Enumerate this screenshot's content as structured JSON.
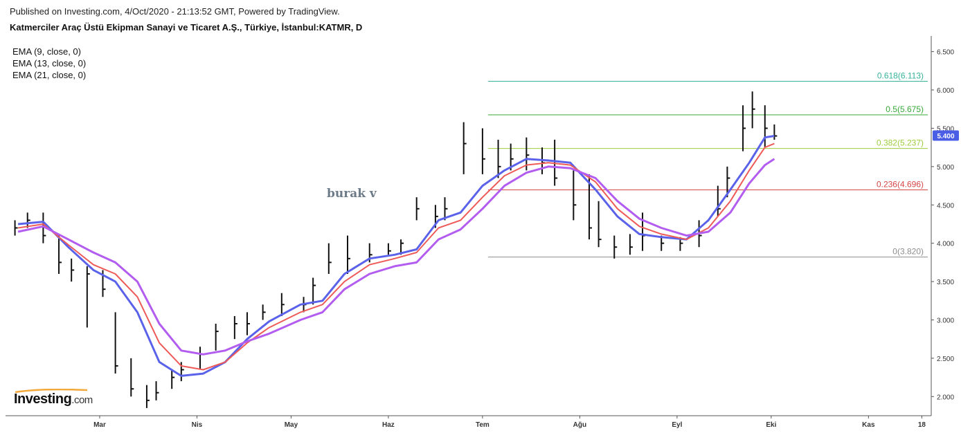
{
  "header": {
    "published": "Published on Investing.com, 4/Oct/2020 - 21:13:52 GMT, Powered by TradingView.",
    "title": "Katmerciler Araç Üstü Ekipman Sanayi ve Ticaret A.Ş., Türkiye, İstanbul:KATMR, D"
  },
  "legend": [
    "EMA (9, close, 0)",
    "EMA (13, close, 0)",
    "EMA (21, close, 0)"
  ],
  "brand": {
    "name": "Investing",
    "suffix": ".com"
  },
  "watermark": "burak v",
  "current_price": {
    "label": "5.400",
    "value": 5.4,
    "color": "#4a5ee6"
  },
  "colors": {
    "ema9": "#5b62ea",
    "ema13": "#ee5a57",
    "ema21": "#b25df0",
    "bars": "#111111"
  },
  "chart_data": {
    "type": "line",
    "ylim": [
      1.75,
      6.65
    ],
    "y_ticks": [
      "2.000",
      "2.500",
      "3.000",
      "3.500",
      "4.000",
      "4.500",
      "5.000",
      "5.500",
      "6.000",
      "6.500"
    ],
    "y_tick_values": [
      2.0,
      2.5,
      3.0,
      3.5,
      4.0,
      4.5,
      5.0,
      5.5,
      6.0,
      6.5
    ],
    "x_ticks": [
      "Mar",
      "Nis",
      "May",
      "Haz",
      "Tem",
      "Ağu",
      "Eyl",
      "Eki",
      "Kas",
      "18"
    ],
    "x_tick_dates": [
      "2020-03-01",
      "2020-04-01",
      "2020-05-01",
      "2020-06-01",
      "2020-07-01",
      "2020-08-01",
      "2020-09-01",
      "2020-10-01",
      "2020-11-01",
      "2020-11-18"
    ],
    "fibonacci": [
      {
        "label": "0.618(6.113)",
        "value": 6.113,
        "color": "#36b39a"
      },
      {
        "label": "0.5(5.675)",
        "value": 5.675,
        "color": "#35a835"
      },
      {
        "label": "0.382(5.237)",
        "value": 5.237,
        "color": "#9ccc3a"
      },
      {
        "label": "0.236(4.696)",
        "value": 4.696,
        "color": "#d64545"
      },
      {
        "label": "0(3.820)",
        "value": 3.82,
        "color": "#8c8c8c"
      }
    ],
    "series": [
      {
        "name": "EMA (9, close, 0)",
        "color": "#5b62ea",
        "x": [
          "2020-02-04",
          "2020-02-12",
          "2020-02-20",
          "2020-02-28",
          "2020-03-06",
          "2020-03-13",
          "2020-03-20",
          "2020-03-27",
          "2020-04-03",
          "2020-04-10",
          "2020-04-17",
          "2020-04-24",
          "2020-05-04",
          "2020-05-11",
          "2020-05-18",
          "2020-05-26",
          "2020-06-03",
          "2020-06-10",
          "2020-06-17",
          "2020-06-24",
          "2020-07-01",
          "2020-07-08",
          "2020-07-15",
          "2020-07-22",
          "2020-07-29",
          "2020-08-06",
          "2020-08-13",
          "2020-08-20",
          "2020-08-27",
          "2020-09-04",
          "2020-09-11",
          "2020-09-18",
          "2020-09-24",
          "2020-09-29",
          "2020-10-02"
        ],
        "values": [
          4.25,
          4.28,
          3.95,
          3.65,
          3.5,
          3.1,
          2.45,
          2.27,
          2.3,
          2.45,
          2.75,
          2.98,
          3.2,
          3.25,
          3.6,
          3.8,
          3.85,
          3.92,
          4.3,
          4.4,
          4.75,
          4.95,
          5.1,
          5.08,
          5.05,
          4.7,
          4.35,
          4.12,
          4.08,
          4.05,
          4.3,
          4.7,
          5.05,
          5.38,
          5.4
        ]
      },
      {
        "name": "EMA (13, close, 0)",
        "color": "#ee5a57",
        "x": [
          "2020-02-04",
          "2020-02-12",
          "2020-02-20",
          "2020-02-28",
          "2020-03-06",
          "2020-03-13",
          "2020-03-20",
          "2020-03-27",
          "2020-04-03",
          "2020-04-10",
          "2020-04-17",
          "2020-04-24",
          "2020-05-04",
          "2020-05-11",
          "2020-05-18",
          "2020-05-26",
          "2020-06-03",
          "2020-06-10",
          "2020-06-17",
          "2020-06-24",
          "2020-07-01",
          "2020-07-08",
          "2020-07-15",
          "2020-07-22",
          "2020-07-29",
          "2020-08-06",
          "2020-08-13",
          "2020-08-20",
          "2020-08-27",
          "2020-09-04",
          "2020-09-11",
          "2020-09-18",
          "2020-09-24",
          "2020-09-29",
          "2020-10-02"
        ],
        "values": [
          4.2,
          4.25,
          3.98,
          3.72,
          3.6,
          3.3,
          2.7,
          2.4,
          2.35,
          2.45,
          2.7,
          2.9,
          3.1,
          3.2,
          3.5,
          3.72,
          3.8,
          3.88,
          4.2,
          4.3,
          4.6,
          4.88,
          5.02,
          5.05,
          5.02,
          4.8,
          4.45,
          4.22,
          4.12,
          4.05,
          4.2,
          4.55,
          4.95,
          5.25,
          5.3
        ]
      },
      {
        "name": "EMA (21, close, 0)",
        "color": "#b25df0",
        "x": [
          "2020-02-04",
          "2020-02-12",
          "2020-02-20",
          "2020-02-28",
          "2020-03-06",
          "2020-03-13",
          "2020-03-20",
          "2020-03-27",
          "2020-04-03",
          "2020-04-10",
          "2020-04-17",
          "2020-04-24",
          "2020-05-04",
          "2020-05-11",
          "2020-05-18",
          "2020-05-26",
          "2020-06-03",
          "2020-06-10",
          "2020-06-17",
          "2020-06-24",
          "2020-07-01",
          "2020-07-08",
          "2020-07-15",
          "2020-07-22",
          "2020-07-29",
          "2020-08-06",
          "2020-08-13",
          "2020-08-20",
          "2020-08-27",
          "2020-09-04",
          "2020-09-11",
          "2020-09-18",
          "2020-09-24",
          "2020-09-29",
          "2020-10-02"
        ],
        "values": [
          4.15,
          4.22,
          4.05,
          3.88,
          3.75,
          3.5,
          2.95,
          2.6,
          2.55,
          2.6,
          2.72,
          2.82,
          3.0,
          3.1,
          3.4,
          3.6,
          3.7,
          3.75,
          4.05,
          4.18,
          4.45,
          4.75,
          4.92,
          5.0,
          4.98,
          4.85,
          4.55,
          4.32,
          4.2,
          4.1,
          4.15,
          4.4,
          4.78,
          5.02,
          5.1
        ]
      }
    ],
    "bars": {
      "name": "KATMR daily bars",
      "x": [
        "2020-02-03",
        "2020-02-07",
        "2020-02-12",
        "2020-02-17",
        "2020-02-21",
        "2020-02-26",
        "2020-03-02",
        "2020-03-06",
        "2020-03-11",
        "2020-03-16",
        "2020-03-19",
        "2020-03-24",
        "2020-03-27",
        "2020-04-02",
        "2020-04-07",
        "2020-04-13",
        "2020-04-17",
        "2020-04-22",
        "2020-04-28",
        "2020-05-05",
        "2020-05-08",
        "2020-05-13",
        "2020-05-19",
        "2020-05-26",
        "2020-06-01",
        "2020-06-05",
        "2020-06-10",
        "2020-06-16",
        "2020-06-19",
        "2020-06-25",
        "2020-07-01",
        "2020-07-06",
        "2020-07-10",
        "2020-07-15",
        "2020-07-20",
        "2020-07-24",
        "2020-07-30",
        "2020-08-04",
        "2020-08-07",
        "2020-08-12",
        "2020-08-17",
        "2020-08-21",
        "2020-08-27",
        "2020-09-02",
        "2020-09-08",
        "2020-09-14",
        "2020-09-17",
        "2020-09-22",
        "2020-09-25",
        "2020-09-29",
        "2020-10-02"
      ],
      "high": [
        4.3,
        4.4,
        4.4,
        4.1,
        3.8,
        3.7,
        3.65,
        3.1,
        2.5,
        2.15,
        2.2,
        2.35,
        2.45,
        2.65,
        2.95,
        3.05,
        3.1,
        3.2,
        3.35,
        3.3,
        3.55,
        4.0,
        4.1,
        4.0,
        4.0,
        4.05,
        4.6,
        4.5,
        4.6,
        5.58,
        5.5,
        5.35,
        5.3,
        5.38,
        5.25,
        5.35,
        4.95,
        4.9,
        4.55,
        4.1,
        4.12,
        4.4,
        4.1,
        4.08,
        4.3,
        4.75,
        5.0,
        5.8,
        5.98,
        5.8,
        5.55
      ],
      "low": [
        4.1,
        4.2,
        4.0,
        3.6,
        3.5,
        2.9,
        3.3,
        2.3,
        2.0,
        1.85,
        1.95,
        2.1,
        2.2,
        2.35,
        2.6,
        2.75,
        2.8,
        3.0,
        3.05,
        3.1,
        3.2,
        3.6,
        3.6,
        3.75,
        3.85,
        3.85,
        4.3,
        4.2,
        4.3,
        4.9,
        4.9,
        4.85,
        4.95,
        4.95,
        4.9,
        4.75,
        4.3,
        4.05,
        3.95,
        3.8,
        3.85,
        3.9,
        3.9,
        3.9,
        3.95,
        4.35,
        4.6,
        5.2,
        5.5,
        5.25,
        5.35
      ],
      "close": [
        4.2,
        4.3,
        4.1,
        3.75,
        3.65,
        3.6,
        3.4,
        2.4,
        2.1,
        1.95,
        2.05,
        2.25,
        2.35,
        2.55,
        2.85,
        2.95,
        2.95,
        3.1,
        3.2,
        3.2,
        3.45,
        3.75,
        3.8,
        3.85,
        3.9,
        4.0,
        4.45,
        4.35,
        4.45,
        5.3,
        5.1,
        5.0,
        5.1,
        5.15,
        5.05,
        4.85,
        4.5,
        4.2,
        4.05,
        3.95,
        3.95,
        4.1,
        4.0,
        4.0,
        4.1,
        4.45,
        4.85,
        5.5,
        5.75,
        5.5,
        5.4
      ]
    }
  }
}
